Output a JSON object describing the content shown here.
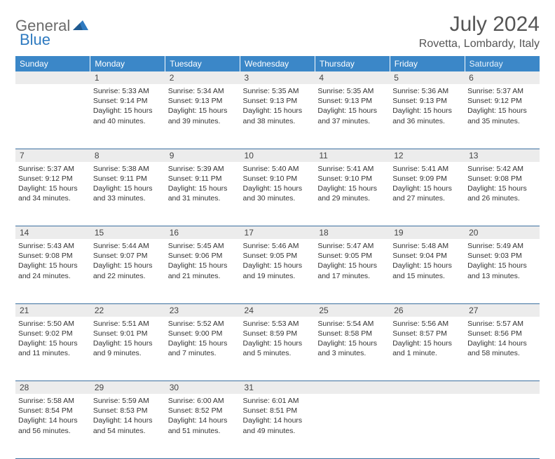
{
  "logo": {
    "part1": "General",
    "part2": "Blue"
  },
  "title": "July 2024",
  "location": "Rovetta, Lombardy, Italy",
  "colors": {
    "header_bg": "#3b87c8",
    "header_text": "#ffffff",
    "daynum_bg": "#ececec",
    "row_border": "#3b6fa0",
    "logo_gray": "#6b6b6b",
    "logo_blue": "#2e7ac0"
  },
  "weekdays": [
    "Sunday",
    "Monday",
    "Tuesday",
    "Wednesday",
    "Thursday",
    "Friday",
    "Saturday"
  ],
  "weeks": [
    {
      "nums": [
        "",
        "1",
        "2",
        "3",
        "4",
        "5",
        "6"
      ],
      "cells": [
        null,
        {
          "sunrise": "5:33 AM",
          "sunset": "9:14 PM",
          "daylight": "15 hours and 40 minutes."
        },
        {
          "sunrise": "5:34 AM",
          "sunset": "9:13 PM",
          "daylight": "15 hours and 39 minutes."
        },
        {
          "sunrise": "5:35 AM",
          "sunset": "9:13 PM",
          "daylight": "15 hours and 38 minutes."
        },
        {
          "sunrise": "5:35 AM",
          "sunset": "9:13 PM",
          "daylight": "15 hours and 37 minutes."
        },
        {
          "sunrise": "5:36 AM",
          "sunset": "9:13 PM",
          "daylight": "15 hours and 36 minutes."
        },
        {
          "sunrise": "5:37 AM",
          "sunset": "9:12 PM",
          "daylight": "15 hours and 35 minutes."
        }
      ]
    },
    {
      "nums": [
        "7",
        "8",
        "9",
        "10",
        "11",
        "12",
        "13"
      ],
      "cells": [
        {
          "sunrise": "5:37 AM",
          "sunset": "9:12 PM",
          "daylight": "15 hours and 34 minutes."
        },
        {
          "sunrise": "5:38 AM",
          "sunset": "9:11 PM",
          "daylight": "15 hours and 33 minutes."
        },
        {
          "sunrise": "5:39 AM",
          "sunset": "9:11 PM",
          "daylight": "15 hours and 31 minutes."
        },
        {
          "sunrise": "5:40 AM",
          "sunset": "9:10 PM",
          "daylight": "15 hours and 30 minutes."
        },
        {
          "sunrise": "5:41 AM",
          "sunset": "9:10 PM",
          "daylight": "15 hours and 29 minutes."
        },
        {
          "sunrise": "5:41 AM",
          "sunset": "9:09 PM",
          "daylight": "15 hours and 27 minutes."
        },
        {
          "sunrise": "5:42 AM",
          "sunset": "9:08 PM",
          "daylight": "15 hours and 26 minutes."
        }
      ]
    },
    {
      "nums": [
        "14",
        "15",
        "16",
        "17",
        "18",
        "19",
        "20"
      ],
      "cells": [
        {
          "sunrise": "5:43 AM",
          "sunset": "9:08 PM",
          "daylight": "15 hours and 24 minutes."
        },
        {
          "sunrise": "5:44 AM",
          "sunset": "9:07 PM",
          "daylight": "15 hours and 22 minutes."
        },
        {
          "sunrise": "5:45 AM",
          "sunset": "9:06 PM",
          "daylight": "15 hours and 21 minutes."
        },
        {
          "sunrise": "5:46 AM",
          "sunset": "9:05 PM",
          "daylight": "15 hours and 19 minutes."
        },
        {
          "sunrise": "5:47 AM",
          "sunset": "9:05 PM",
          "daylight": "15 hours and 17 minutes."
        },
        {
          "sunrise": "5:48 AM",
          "sunset": "9:04 PM",
          "daylight": "15 hours and 15 minutes."
        },
        {
          "sunrise": "5:49 AM",
          "sunset": "9:03 PM",
          "daylight": "15 hours and 13 minutes."
        }
      ]
    },
    {
      "nums": [
        "21",
        "22",
        "23",
        "24",
        "25",
        "26",
        "27"
      ],
      "cells": [
        {
          "sunrise": "5:50 AM",
          "sunset": "9:02 PM",
          "daylight": "15 hours and 11 minutes."
        },
        {
          "sunrise": "5:51 AM",
          "sunset": "9:01 PM",
          "daylight": "15 hours and 9 minutes."
        },
        {
          "sunrise": "5:52 AM",
          "sunset": "9:00 PM",
          "daylight": "15 hours and 7 minutes."
        },
        {
          "sunrise": "5:53 AM",
          "sunset": "8:59 PM",
          "daylight": "15 hours and 5 minutes."
        },
        {
          "sunrise": "5:54 AM",
          "sunset": "8:58 PM",
          "daylight": "15 hours and 3 minutes."
        },
        {
          "sunrise": "5:56 AM",
          "sunset": "8:57 PM",
          "daylight": "15 hours and 1 minute."
        },
        {
          "sunrise": "5:57 AM",
          "sunset": "8:56 PM",
          "daylight": "14 hours and 58 minutes."
        }
      ]
    },
    {
      "nums": [
        "28",
        "29",
        "30",
        "31",
        "",
        "",
        ""
      ],
      "cells": [
        {
          "sunrise": "5:58 AM",
          "sunset": "8:54 PM",
          "daylight": "14 hours and 56 minutes."
        },
        {
          "sunrise": "5:59 AM",
          "sunset": "8:53 PM",
          "daylight": "14 hours and 54 minutes."
        },
        {
          "sunrise": "6:00 AM",
          "sunset": "8:52 PM",
          "daylight": "14 hours and 51 minutes."
        },
        {
          "sunrise": "6:01 AM",
          "sunset": "8:51 PM",
          "daylight": "14 hours and 49 minutes."
        },
        null,
        null,
        null
      ]
    }
  ],
  "labels": {
    "sunrise": "Sunrise:",
    "sunset": "Sunset:",
    "daylight": "Daylight:"
  }
}
